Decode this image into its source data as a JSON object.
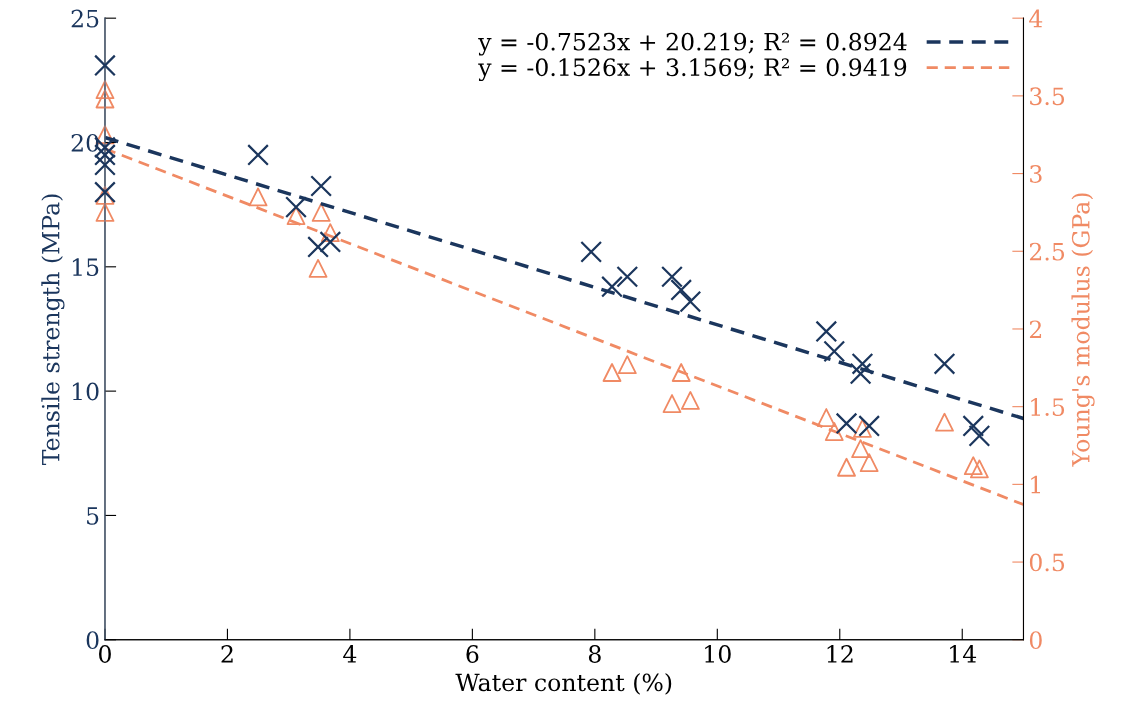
{
  "chart_data": {
    "type": "scatter",
    "xlabel": "Water content (%)",
    "ylabel": "Tensile strength (MPa)",
    "y2label": "Young's modulus (GPa)",
    "xlim": [
      0,
      15
    ],
    "xticks": [
      0,
      2,
      4,
      6,
      8,
      10,
      12,
      14
    ],
    "ylim": [
      0,
      25
    ],
    "yticks": [
      0,
      5,
      10,
      15,
      20,
      25
    ],
    "y2lim": [
      0,
      4
    ],
    "y2ticks": [
      0,
      0.5,
      1,
      1.5,
      2,
      2.5,
      3,
      3.5,
      4
    ],
    "grid": false,
    "legend": "top right",
    "series": [
      {
        "marker": "cross",
        "color": "#1b365d",
        "x": [
          0,
          0,
          0,
          0,
          0,
          2.5,
          3.12,
          3.53,
          3.48,
          3.68,
          7.94,
          8.28,
          8.53,
          9.26,
          9.41,
          9.56,
          11.78,
          11.91,
          12.37,
          12.34,
          13.71,
          12.11,
          12.48,
          14.18,
          14.28
        ],
        "values": [
          23.1,
          19.8,
          19.5,
          19.1,
          18.0,
          19.5,
          17.4,
          18.25,
          15.8,
          16.0,
          15.6,
          14.2,
          14.6,
          14.6,
          14.07,
          13.6,
          12.4,
          11.6,
          11.1,
          10.7,
          11.1,
          8.7,
          8.6,
          8.6,
          8.2
        ]
      },
      {
        "marker": "triangle",
        "axis": "y2",
        "color": "#f08a64",
        "x": [
          0,
          0,
          0,
          0,
          0,
          2.5,
          3.12,
          3.53,
          3.68,
          3.48,
          8.28,
          8.53,
          9.41,
          9.26,
          9.56,
          11.78,
          11.91,
          12.37,
          12.34,
          12.11,
          12.48,
          13.71,
          14.18,
          14.28
        ],
        "values": [
          3.54,
          3.48,
          3.25,
          2.86,
          2.75,
          2.85,
          2.73,
          2.75,
          2.62,
          2.39,
          1.72,
          1.77,
          1.72,
          1.52,
          1.54,
          1.43,
          1.34,
          1.36,
          1.23,
          1.11,
          1.14,
          1.4,
          1.12,
          1.1
        ]
      },
      {
        "type": "line",
        "name": "y = -0.7523x + 20.219; R² = 0.8924",
        "line_style": "dashed",
        "color": "#1b365d",
        "x": [
          0,
          15
        ],
        "values": [
          20.2,
          8.9
        ]
      },
      {
        "type": "line",
        "name": "y = -0.1526x + 3.1569; R² = 0.9419",
        "line_style": "dashed",
        "axis": "y2",
        "color": "#f08a64",
        "x": [
          0,
          15
        ],
        "values": [
          3.16,
          0.87
        ]
      }
    ]
  }
}
